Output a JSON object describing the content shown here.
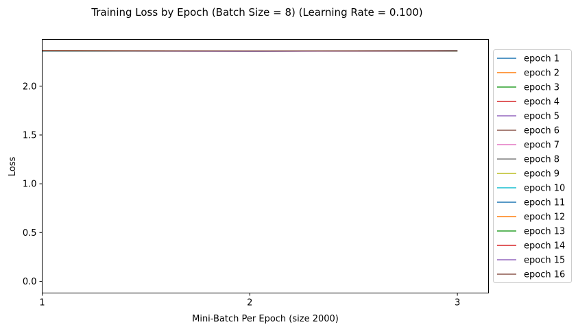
{
  "chart_data": {
    "type": "line",
    "title": "Training Loss by Epoch (Batch Size = 8) (Learning Rate = 0.100)",
    "xlabel": "Mini-Batch Per Epoch (size 2000)",
    "ylabel": "Loss",
    "x": [
      1,
      2,
      3
    ],
    "x_ticks": [
      "1",
      "2",
      "3"
    ],
    "y_ticks": [
      "0.0",
      "0.5",
      "1.0",
      "1.5",
      "2.0"
    ],
    "xlim": [
      1,
      3.15
    ],
    "ylim": [
      -0.12,
      2.48
    ],
    "grid": false,
    "legend_position": "outside-right",
    "series": [
      {
        "name": "epoch 1",
        "color": "#1f77b4",
        "values": [
          2.363,
          2.36,
          2.364
        ]
      },
      {
        "name": "epoch 2",
        "color": "#ff7f0e",
        "values": [
          2.361,
          2.358,
          2.362
        ]
      },
      {
        "name": "epoch 3",
        "color": "#2ca02c",
        "values": [
          2.364,
          2.359,
          2.363
        ]
      },
      {
        "name": "epoch 4",
        "color": "#d62728",
        "values": [
          2.362,
          2.361,
          2.36
        ]
      },
      {
        "name": "epoch 5",
        "color": "#9467bd",
        "values": [
          2.36,
          2.357,
          2.362
        ]
      },
      {
        "name": "epoch 6",
        "color": "#8c564b",
        "values": [
          2.365,
          2.362,
          2.364
        ]
      },
      {
        "name": "epoch 7",
        "color": "#e377c2",
        "values": [
          2.361,
          2.36,
          2.361
        ]
      },
      {
        "name": "epoch 8",
        "color": "#7f7f7f",
        "values": [
          2.362,
          2.359,
          2.363
        ]
      },
      {
        "name": "epoch 9",
        "color": "#bcbd22",
        "values": [
          2.363,
          2.361,
          2.362
        ]
      },
      {
        "name": "epoch 10",
        "color": "#17becf",
        "values": [
          2.36,
          2.358,
          2.361
        ]
      },
      {
        "name": "epoch 11",
        "color": "#1f77b4",
        "values": [
          2.362,
          2.36,
          2.363
        ]
      },
      {
        "name": "epoch 12",
        "color": "#ff7f0e",
        "values": [
          2.364,
          2.361,
          2.362
        ]
      },
      {
        "name": "epoch 13",
        "color": "#2ca02c",
        "values": [
          2.361,
          2.359,
          2.36
        ]
      },
      {
        "name": "epoch 14",
        "color": "#d62728",
        "values": [
          2.363,
          2.36,
          2.362
        ]
      },
      {
        "name": "epoch 15",
        "color": "#9467bd",
        "values": [
          2.362,
          2.358,
          2.361
        ]
      },
      {
        "name": "epoch 16",
        "color": "#8c564b",
        "values": [
          2.364,
          2.362,
          2.363
        ]
      }
    ]
  }
}
